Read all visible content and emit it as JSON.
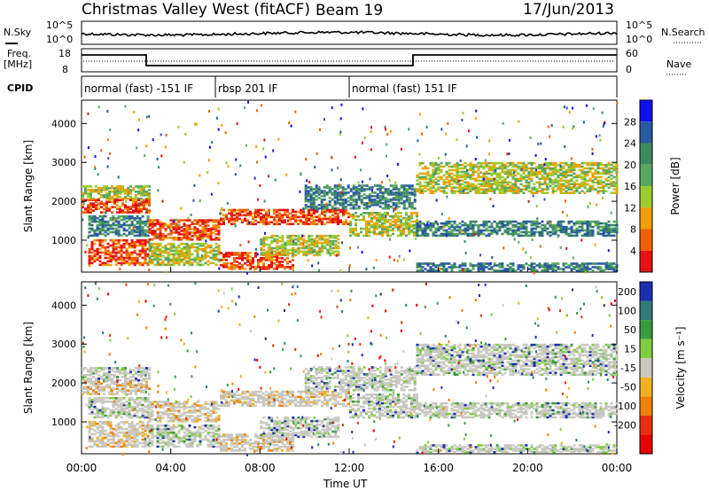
{
  "header": {
    "station": "Christmas Valley West (fitACF)",
    "beam": "Beam 19",
    "date": "17/Jun/2013"
  },
  "strips": {
    "nsky_label": "N.Sky",
    "nsky_ticks": [
      "10^5",
      "10^0"
    ],
    "nsky_right_ticks": [
      "10^5",
      "10^0"
    ],
    "nsearch_label": "N.Search",
    "freq_label_1": "Freq.",
    "freq_label_2": "[MHz]",
    "freq_ticks": [
      "18",
      "8"
    ],
    "nave_ticks": [
      "60",
      "0"
    ],
    "nave_label": "Nave",
    "cpid_label": "CPID",
    "cpid_segments": [
      {
        "label": "normal (fast) -151 IF",
        "start_hour": 0,
        "end_hour": 6.0
      },
      {
        "label": "rbsp 201 IF",
        "start_hour": 6.0,
        "end_hour": 12.0
      },
      {
        "label": "normal (fast) 151 IF",
        "start_hour": 12.0,
        "end_hour": 24
      }
    ]
  },
  "chart_data": [
    {
      "type": "heatmap",
      "name": "power",
      "xlabel": "Time UT",
      "ylabel": "Slant Range [km]",
      "xlim": [
        0,
        24
      ],
      "ylim": [
        180,
        4600
      ],
      "xticks": [
        "00:00",
        "04:00",
        "08:00",
        "12:00",
        "16:00",
        "20:00",
        "00:00"
      ],
      "yticks": [
        1000,
        2000,
        3000,
        4000
      ],
      "colorbar": {
        "label": "Power [dB]",
        "ticks": [
          4,
          8,
          12,
          16,
          20,
          24,
          28
        ],
        "colors": [
          "#1010ee",
          "#2a5aa0",
          "#3a8a60",
          "#5aa860",
          "#9bcc30",
          "#f0a000",
          "#f06000",
          "#e81010"
        ]
      }
    },
    {
      "type": "heatmap",
      "name": "velocity",
      "xlabel": "Time UT",
      "ylabel": "Slant Range [km]",
      "xlim": [
        0,
        24
      ],
      "ylim": [
        180,
        4600
      ],
      "xticks": [
        "00:00",
        "04:00",
        "08:00",
        "12:00",
        "16:00",
        "20:00",
        "00:00"
      ],
      "yticks": [
        1000,
        2000,
        3000,
        4000
      ],
      "colorbar": {
        "label": "Velocity [m s⁻¹]",
        "ticks": [
          200,
          100,
          50,
          15,
          -15,
          -50,
          -100,
          -200
        ],
        "colors": [
          "#1b2fb0",
          "#2f7a7a",
          "#3a9a40",
          "#80cc40",
          "#c8c8c0",
          "#f0b020",
          "#f08000",
          "#e83010",
          "#e80000"
        ]
      }
    }
  ],
  "bands": [
    {
      "t0": 0.0,
      "t1": 3.0,
      "r0": 2050,
      "r1": 2400,
      "cls": "mid"
    },
    {
      "t0": 0.0,
      "t1": 3.0,
      "r0": 1700,
      "r1": 2050,
      "cls": "hot"
    },
    {
      "t0": 0.3,
      "t1": 3.0,
      "r0": 1100,
      "r1": 1600,
      "cls": "low"
    },
    {
      "t0": 0.3,
      "t1": 3.0,
      "r0": 350,
      "r1": 1000,
      "cls": "hot"
    },
    {
      "t0": 3.0,
      "t1": 6.2,
      "r0": 1000,
      "r1": 1500,
      "cls": "hot"
    },
    {
      "t0": 3.0,
      "t1": 6.2,
      "r0": 350,
      "r1": 900,
      "cls": "mid"
    },
    {
      "t0": 6.2,
      "t1": 12.0,
      "r0": 1400,
      "r1": 1800,
      "cls": "hot"
    },
    {
      "t0": 6.2,
      "t1": 9.5,
      "r0": 250,
      "r1": 700,
      "cls": "hot"
    },
    {
      "t0": 8.0,
      "t1": 11.5,
      "r0": 600,
      "r1": 1100,
      "cls": "mid"
    },
    {
      "t0": 10.0,
      "t1": 15.0,
      "r0": 1800,
      "r1": 2400,
      "cls": "low"
    },
    {
      "t0": 12.0,
      "t1": 15.0,
      "r0": 1100,
      "r1": 1700,
      "cls": "mid"
    },
    {
      "t0": 15.0,
      "t1": 24.0,
      "r0": 2200,
      "r1": 3000,
      "cls": "mid"
    },
    {
      "t0": 15.0,
      "t1": 24.0,
      "r0": 1100,
      "r1": 1500,
      "cls": "low"
    },
    {
      "t0": 15.0,
      "t1": 24.0,
      "r0": 200,
      "r1": 400,
      "cls": "low"
    }
  ]
}
